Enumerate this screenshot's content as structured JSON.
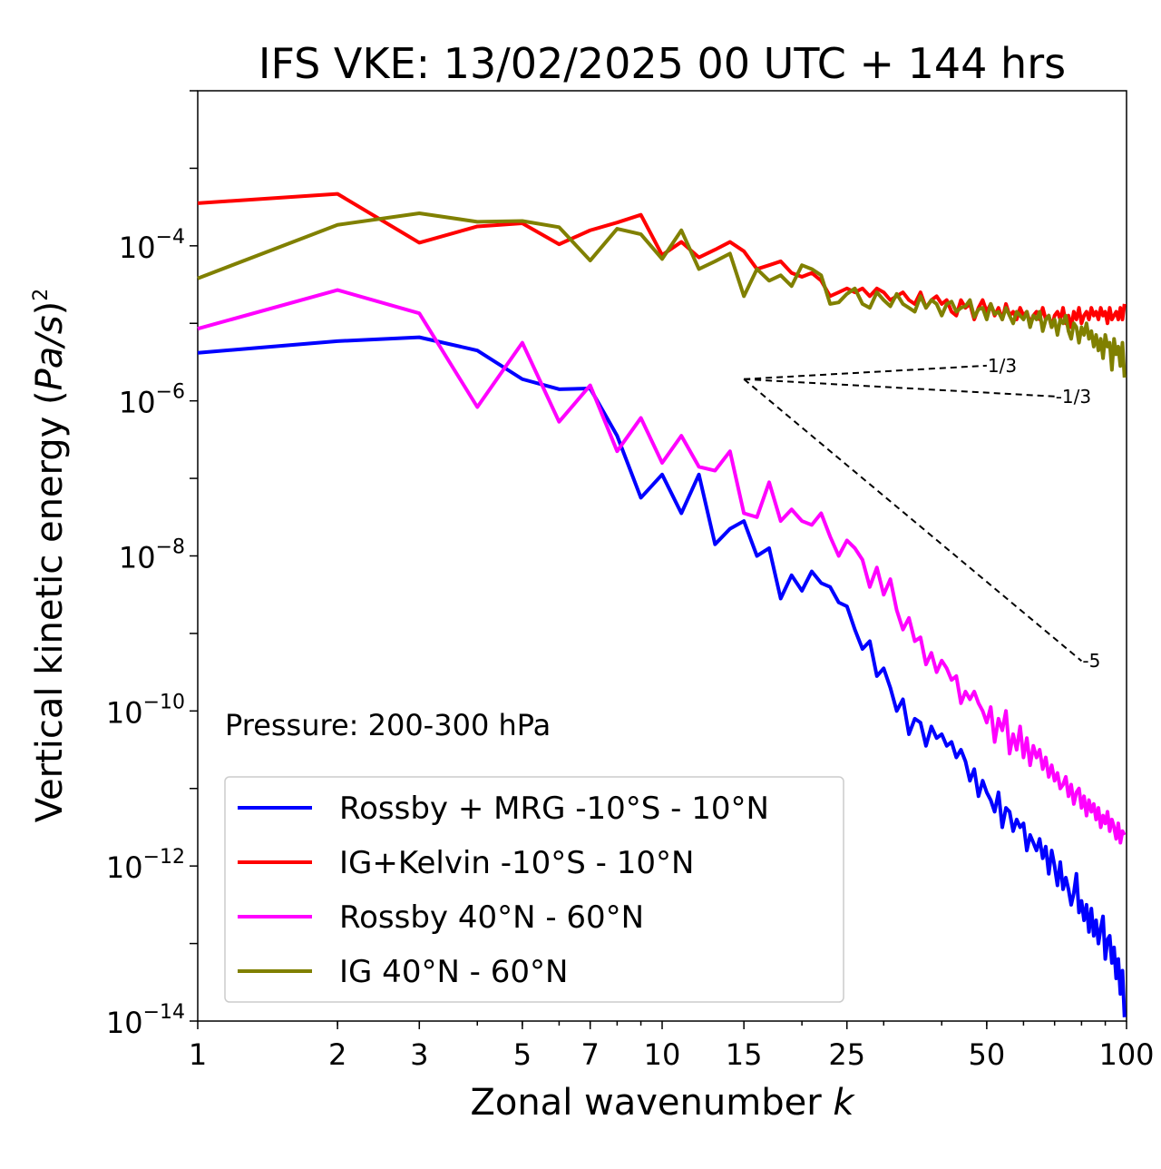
{
  "chart_data": {
    "type": "line",
    "title": "IFS VKE: 13/02/2025 00 UTC + 144 hrs",
    "xlabel_prefix": "Zonal wavenumber ",
    "xlabel_var": "k",
    "ylabel_prefix": "Vertical kinetic energy (",
    "ylabel_var": "Pa/s",
    "ylabel_suffix": ")",
    "ylabel_exp": "2",
    "xscale": "log",
    "yscale": "log",
    "xlim": [
      1,
      100
    ],
    "ylim": [
      1e-14,
      0.01
    ],
    "xticks": [
      {
        "value": 1,
        "label": "1"
      },
      {
        "value": 2,
        "label": "2"
      },
      {
        "value": 3,
        "label": "3"
      },
      {
        "value": 5,
        "label": "5"
      },
      {
        "value": 7,
        "label": "7"
      },
      {
        "value": 10,
        "label": "10"
      },
      {
        "value": 15,
        "label": "15"
      },
      {
        "value": 25,
        "label": "25"
      },
      {
        "value": 50,
        "label": "50"
      },
      {
        "value": 100,
        "label": "100"
      }
    ],
    "yticks": [
      {
        "exp": -4,
        "base": "10",
        "sup": "−4"
      },
      {
        "exp": -6,
        "base": "10",
        "sup": "−6"
      },
      {
        "exp": -8,
        "base": "10",
        "sup": "−8"
      },
      {
        "exp": -10,
        "base": "10",
        "sup": "−10"
      },
      {
        "exp": -12,
        "base": "10",
        "sup": "−12"
      },
      {
        "exp": -14,
        "base": "10",
        "sup": "−14"
      }
    ],
    "grid": false,
    "legend_position": "lower-left",
    "annotation": "Pressure: 200-300 hPa",
    "series": [
      {
        "name": "Rossby + MRG -10°S - 10°N",
        "color": "#0000ff",
        "log10_values": [
          -5.38,
          -5.23,
          -5.18,
          -5.35,
          -5.72,
          -5.85,
          -5.84,
          -6.45,
          -7.25,
          -6.95,
          -7.45,
          -6.95,
          -7.85,
          -7.65,
          -7.55,
          -8.0,
          -7.9,
          -8.55,
          -8.25,
          -8.45,
          -8.2,
          -8.35,
          -8.4,
          -8.6,
          -8.65,
          -8.95,
          -9.2,
          -9.1,
          -9.55,
          -9.45,
          -9.7,
          -10.0,
          -9.85,
          -10.3,
          -10.1,
          -10.15,
          -10.45,
          -10.2,
          -10.35,
          -10.3,
          -10.45,
          -10.4,
          -10.6,
          -10.5,
          -10.65,
          -10.9,
          -10.75,
          -11.1,
          -10.9,
          -11.05,
          -11.15,
          -11.3,
          -11.05,
          -11.5,
          -11.25,
          -11.3,
          -11.55,
          -11.4,
          -11.5,
          -11.45,
          -11.8,
          -11.6,
          -11.7,
          -11.8,
          -11.65,
          -11.9,
          -11.75,
          -12.1,
          -11.8,
          -12.0,
          -12.25,
          -11.95,
          -12.3,
          -12.15,
          -12.3,
          -12.5,
          -12.35,
          -12.1,
          -12.6,
          -12.45,
          -12.7,
          -12.5,
          -12.85,
          -12.55,
          -12.9,
          -12.7,
          -13.0,
          -12.8,
          -12.65,
          -13.2,
          -12.95,
          -12.9,
          -13.25,
          -13.05,
          -13.45,
          -13.2,
          -13.65,
          -13.35,
          -13.95
        ]
      },
      {
        "name": "IG+Kelvin -10°S - 10°N",
        "color": "#ff0000",
        "log10_values": [
          -3.45,
          -3.33,
          -3.96,
          -3.75,
          -3.71,
          -3.98,
          -3.8,
          -3.7,
          -3.6,
          -4.12,
          -3.95,
          -4.15,
          -4.05,
          -3.95,
          -4.07,
          -4.3,
          -4.25,
          -4.2,
          -4.35,
          -4.4,
          -4.35,
          -4.45,
          -4.65,
          -4.6,
          -4.55,
          -4.6,
          -4.55,
          -4.65,
          -4.55,
          -4.6,
          -4.7,
          -4.65,
          -4.6,
          -4.7,
          -4.75,
          -4.6,
          -4.8,
          -4.7,
          -4.65,
          -4.75,
          -4.7,
          -4.85,
          -4.9,
          -4.7,
          -4.8,
          -4.75,
          -4.95,
          -4.8,
          -4.7,
          -4.85,
          -4.75,
          -4.9,
          -4.8,
          -4.95,
          -4.75,
          -4.9,
          -4.85,
          -4.95,
          -4.8,
          -4.9,
          -4.85,
          -5.0,
          -4.9,
          -4.85,
          -4.95,
          -4.8,
          -4.95,
          -4.9,
          -5.05,
          -4.9,
          -4.85,
          -4.95,
          -4.8,
          -5.0,
          -4.9,
          -5.05,
          -4.85,
          -4.95,
          -4.8,
          -5.0,
          -4.9,
          -4.85,
          -4.95,
          -4.8,
          -4.9,
          -4.85,
          -4.95,
          -4.8,
          -4.9,
          -4.85,
          -5.0,
          -4.8,
          -4.95,
          -4.9,
          -4.85,
          -4.95,
          -4.8,
          -4.95,
          -4.75
        ]
      },
      {
        "name": "Rossby 40°N - 60°N",
        "color": "#ff00ff",
        "log10_values": [
          -5.07,
          -4.57,
          -4.87,
          -6.08,
          -5.25,
          -6.27,
          -5.8,
          -6.65,
          -6.22,
          -6.8,
          -6.45,
          -6.85,
          -6.9,
          -6.65,
          -7.45,
          -7.5,
          -7.05,
          -7.55,
          -7.4,
          -7.55,
          -7.6,
          -7.45,
          -7.75,
          -8.0,
          -7.8,
          -7.9,
          -8.05,
          -8.4,
          -8.15,
          -8.5,
          -8.3,
          -8.7,
          -8.95,
          -8.8,
          -9.1,
          -9.05,
          -9.4,
          -9.25,
          -9.5,
          -9.35,
          -9.45,
          -9.6,
          -9.55,
          -9.9,
          -9.75,
          -9.85,
          -9.75,
          -9.9,
          -10.0,
          -10.15,
          -9.95,
          -10.4,
          -10.1,
          -10.25,
          -10.0,
          -10.55,
          -10.3,
          -10.5,
          -10.2,
          -10.6,
          -10.35,
          -10.7,
          -10.45,
          -10.6,
          -10.5,
          -10.75,
          -10.6,
          -10.85,
          -10.7,
          -10.9,
          -10.8,
          -11.0,
          -10.95,
          -10.85,
          -11.1,
          -10.95,
          -11.2,
          -11.05,
          -11.0,
          -11.25,
          -11.1,
          -11.35,
          -11.15,
          -11.3,
          -11.2,
          -11.4,
          -11.25,
          -11.5,
          -11.35,
          -11.45,
          -11.3,
          -11.55,
          -11.4,
          -11.5,
          -11.65,
          -11.45,
          -11.7,
          -11.55,
          -11.6
        ]
      },
      {
        "name": "IG 40°N - 60°N",
        "color": "#808000",
        "log10_values": [
          -4.42,
          -3.73,
          -3.58,
          -3.69,
          -3.68,
          -3.76,
          -4.19,
          -3.78,
          -3.85,
          -4.17,
          -3.8,
          -4.3,
          -4.2,
          -4.1,
          -4.65,
          -4.3,
          -4.45,
          -4.38,
          -4.52,
          -4.25,
          -4.3,
          -4.38,
          -4.75,
          -4.73,
          -4.62,
          -4.55,
          -4.75,
          -4.8,
          -4.6,
          -4.7,
          -4.78,
          -4.62,
          -4.75,
          -4.8,
          -4.85,
          -4.65,
          -4.8,
          -4.7,
          -4.75,
          -4.9,
          -4.75,
          -4.72,
          -4.85,
          -4.8,
          -4.78,
          -4.7,
          -4.92,
          -4.82,
          -4.8,
          -4.95,
          -4.75,
          -4.88,
          -4.85,
          -4.95,
          -4.8,
          -4.9,
          -5.0,
          -4.85,
          -4.9,
          -4.95,
          -4.85,
          -5.05,
          -4.9,
          -4.95,
          -4.85,
          -5.1,
          -4.95,
          -4.9,
          -5.05,
          -4.95,
          -5.15,
          -4.95,
          -5.0,
          -4.9,
          -5.1,
          -5.2,
          -5.0,
          -5.05,
          -5.25,
          -5.05,
          -5.15,
          -5.0,
          -5.2,
          -5.1,
          -5.3,
          -5.15,
          -5.35,
          -5.2,
          -5.45,
          -5.15,
          -5.3,
          -5.25,
          -5.6,
          -5.2,
          -5.4,
          -5.3,
          -5.55,
          -5.25,
          -5.7
        ]
      }
    ],
    "reference_slopes": [
      {
        "label": "1/3",
        "slope": 0.3333,
        "x_start": 15,
        "x_end": 50,
        "log10_y_start": -5.72
      },
      {
        "label": "-1/3",
        "slope": -0.3333,
        "x_start": 15,
        "x_end": 70,
        "log10_y_start": -5.72
      },
      {
        "label": "-5",
        "slope": -5,
        "x_start": 15,
        "x_end": 80,
        "log10_y_start": -5.72
      }
    ],
    "slope_colors": {
      "line": "#000000"
    }
  }
}
